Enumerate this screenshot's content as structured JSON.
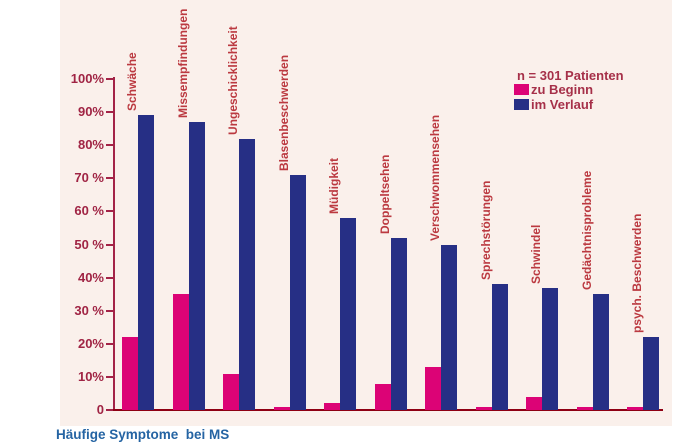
{
  "chart_data": {
    "type": "bar",
    "title": "Häufige Symptome  bei MS",
    "legend_note": "n = 301 Patienten",
    "legend_position": "upper right",
    "grid": false,
    "categories": [
      "Schwäche",
      "Missempfindungen",
      "Ungeschicklichkeit",
      "Blasenbeschwerden",
      "Müdigkeit",
      "Doppeltsehen",
      "Verschwommensehen",
      "Sprechstörungen",
      "Schwindel",
      "Gedächtnisprobleme",
      "psych. Beschwerden"
    ],
    "series": [
      {
        "name": "zu Beginn",
        "color": "#dc0376",
        "values": [
          22,
          35,
          11,
          1,
          2,
          8,
          13,
          1,
          4,
          1,
          1
        ]
      },
      {
        "name": "im Verlauf",
        "color": "#262f85",
        "values": [
          89,
          87,
          82,
          71,
          58,
          52,
          50,
          38,
          37,
          35,
          22
        ]
      }
    ],
    "ylabel": "",
    "xlabel": "",
    "ylim": [
      0,
      100
    ],
    "y_tick_labels": [
      "100%",
      "90%",
      "80%",
      "70 %",
      "60 %",
      "50 %",
      "40%",
      "30 %",
      "20%",
      "10%",
      "0"
    ],
    "y_tick_values": [
      100,
      90,
      80,
      70,
      60,
      50,
      40,
      30,
      20,
      10,
      0
    ]
  },
  "colors": {
    "panel_background": "#faf0eb",
    "page_background": "#ffffff",
    "series_begin": "#dc0376",
    "series_course": "#262f85",
    "axis": "#a32347",
    "axis_labels": "#a02444",
    "category_labels": "#bb3940",
    "baseline": "#8e0013",
    "legend_text": "#a63049",
    "caption": "#2564a3"
  }
}
